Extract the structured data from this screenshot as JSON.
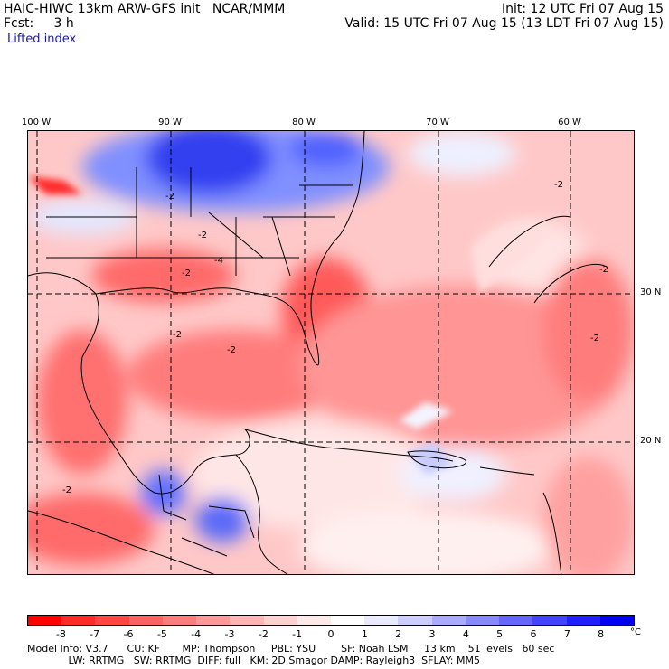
{
  "header": {
    "title_left": "HAIC-HIWC 13km ARW-GFS init   NCAR/MMM",
    "fcst": "Fcst:     3 h",
    "init": "Init: 12 UTC Fri 07 Aug 15",
    "valid": "Valid: 15 UTC Fri 07 Aug 15 (13 LDT Fri 07 Aug 15)",
    "field": "Lifted index"
  },
  "map": {
    "lon_labels": [
      "100 W",
      "90 W",
      "80 W",
      "70 W",
      "60 W"
    ],
    "lat_labels": [
      "30 N",
      "20 N"
    ],
    "contour_labels": [
      "-2",
      "-2",
      "-2",
      "-4",
      "-2",
      "-2",
      "-2",
      "-2",
      "-2",
      "-2"
    ]
  },
  "colorbar": {
    "ticks": [
      "-8",
      "-7",
      "-6",
      "-5",
      "-4",
      "-3",
      "-2",
      "-1",
      "0",
      "1",
      "2",
      "3",
      "4",
      "5",
      "6",
      "7",
      "8"
    ],
    "unit": "°C",
    "colors": [
      "#ff0000",
      "#ff2a2a",
      "#ff4646",
      "#ff6262",
      "#ff7c7c",
      "#ff9898",
      "#ffb4b4",
      "#ffd0d0",
      "#ffeaea",
      "#ffffff",
      "#eaeaff",
      "#ccccff",
      "#aaaaff",
      "#8888ff",
      "#6666ff",
      "#4444ff",
      "#2020ff",
      "#0000ee"
    ]
  },
  "footer": {
    "line1": "Model Info: V3.7      CU: KF       MP: Thompson     PBL: YSU        SF: Noah LSM     13 km    51 levels   60 sec",
    "line2": "             LW: RRTMG   SW: RRTMG  DIFF: full   KM: 2D Smagor DAMP: Rayleigh3  SFLAY: MM5"
  }
}
